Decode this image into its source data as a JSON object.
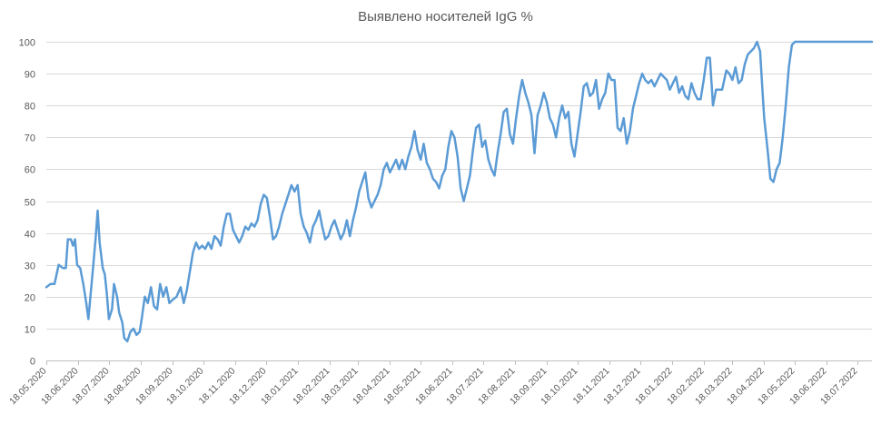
{
  "chart_data": {
    "type": "line",
    "title": "Выявлено носителей IgG %",
    "xlabel": "",
    "ylabel": "",
    "ylim": [
      0,
      100
    ],
    "y_ticks": [
      0,
      10,
      20,
      30,
      40,
      50,
      60,
      70,
      80,
      90,
      100
    ],
    "x_range": [
      "2020-05-18",
      "2022-08-01"
    ],
    "grid": "horizontal",
    "x_tick_labels": [
      "18.05.2020",
      "18.06.2020",
      "18.07.2020",
      "18.08.2020",
      "18.09.2020",
      "18.10.2020",
      "18.11.2020",
      "18.12.2020",
      "18.01.2021",
      "18.02.2021",
      "18.03.2021",
      "18.04.2021",
      "18.05.2021",
      "18.06.2021",
      "18.07.2021",
      "18.08.2021",
      "18.09.2021",
      "18.10.2021",
      "18.11.2021",
      "18.12.2021",
      "18.01.2022",
      "18.02.2022",
      "18.03.2022",
      "18.04.2022",
      "18.05.2022",
      "18.06.2022",
      "18.07.2022"
    ],
    "series_color": "#5B9BD5",
    "series": [
      {
        "values": [
          [
            "2020-05-18",
            23
          ],
          [
            "2020-05-22",
            24
          ],
          [
            "2020-05-26",
            24
          ],
          [
            "2020-05-30",
            30
          ],
          [
            "2020-06-03",
            29
          ],
          [
            "2020-06-06",
            29
          ],
          [
            "2020-06-08",
            38
          ],
          [
            "2020-06-11",
            38
          ],
          [
            "2020-06-13",
            36
          ],
          [
            "2020-06-15",
            38
          ],
          [
            "2020-06-17",
            30
          ],
          [
            "2020-06-20",
            29
          ],
          [
            "2020-06-23",
            24
          ],
          [
            "2020-06-26",
            18
          ],
          [
            "2020-06-28",
            13
          ],
          [
            "2020-07-02",
            27
          ],
          [
            "2020-07-05",
            38
          ],
          [
            "2020-07-07",
            47
          ],
          [
            "2020-07-09",
            37
          ],
          [
            "2020-07-12",
            29
          ],
          [
            "2020-07-14",
            27
          ],
          [
            "2020-07-16",
            21
          ],
          [
            "2020-07-18",
            13
          ],
          [
            "2020-07-21",
            16
          ],
          [
            "2020-07-23",
            24
          ],
          [
            "2020-07-26",
            20
          ],
          [
            "2020-07-28",
            15
          ],
          [
            "2020-07-31",
            12
          ],
          [
            "2020-08-02",
            7
          ],
          [
            "2020-08-05",
            6
          ],
          [
            "2020-08-08",
            9
          ],
          [
            "2020-08-11",
            10
          ],
          [
            "2020-08-14",
            8
          ],
          [
            "2020-08-17",
            9
          ],
          [
            "2020-08-19",
            13
          ],
          [
            "2020-08-22",
            20
          ],
          [
            "2020-08-25",
            18
          ],
          [
            "2020-08-28",
            23
          ],
          [
            "2020-08-31",
            17
          ],
          [
            "2020-09-03",
            16
          ],
          [
            "2020-09-06",
            24
          ],
          [
            "2020-09-09",
            20
          ],
          [
            "2020-09-12",
            23
          ],
          [
            "2020-09-15",
            18
          ],
          [
            "2020-09-18",
            19
          ],
          [
            "2020-09-22",
            20
          ],
          [
            "2020-09-26",
            23
          ],
          [
            "2020-09-29",
            18
          ],
          [
            "2020-10-02",
            22
          ],
          [
            "2020-10-05",
            28
          ],
          [
            "2020-10-08",
            34
          ],
          [
            "2020-10-11",
            37
          ],
          [
            "2020-10-14",
            35
          ],
          [
            "2020-10-17",
            36
          ],
          [
            "2020-10-20",
            35
          ],
          [
            "2020-10-23",
            37
          ],
          [
            "2020-10-26",
            35
          ],
          [
            "2020-10-29",
            39
          ],
          [
            "2020-11-01",
            38
          ],
          [
            "2020-11-04",
            36
          ],
          [
            "2020-11-07",
            42
          ],
          [
            "2020-11-10",
            46
          ],
          [
            "2020-11-13",
            46
          ],
          [
            "2020-11-16",
            41
          ],
          [
            "2020-11-19",
            39
          ],
          [
            "2020-11-22",
            37
          ],
          [
            "2020-11-25",
            39
          ],
          [
            "2020-11-28",
            42
          ],
          [
            "2020-12-01",
            41
          ],
          [
            "2020-12-04",
            43
          ],
          [
            "2020-12-07",
            42
          ],
          [
            "2020-12-10",
            44
          ],
          [
            "2020-12-13",
            49
          ],
          [
            "2020-12-16",
            52
          ],
          [
            "2020-12-19",
            51
          ],
          [
            "2020-12-22",
            45
          ],
          [
            "2020-12-25",
            38
          ],
          [
            "2020-12-28",
            39
          ],
          [
            "2020-12-31",
            42
          ],
          [
            "2021-01-03",
            46
          ],
          [
            "2021-01-06",
            49
          ],
          [
            "2021-01-09",
            52
          ],
          [
            "2021-01-12",
            55
          ],
          [
            "2021-01-15",
            53
          ],
          [
            "2021-01-18",
            55
          ],
          [
            "2021-01-21",
            46
          ],
          [
            "2021-01-24",
            42
          ],
          [
            "2021-01-27",
            40
          ],
          [
            "2021-01-30",
            37
          ],
          [
            "2021-02-02",
            42
          ],
          [
            "2021-02-05",
            44
          ],
          [
            "2021-02-08",
            47
          ],
          [
            "2021-02-11",
            42
          ],
          [
            "2021-02-14",
            38
          ],
          [
            "2021-02-17",
            39
          ],
          [
            "2021-02-20",
            42
          ],
          [
            "2021-02-23",
            44
          ],
          [
            "2021-02-26",
            41
          ],
          [
            "2021-03-01",
            38
          ],
          [
            "2021-03-04",
            40
          ],
          [
            "2021-03-07",
            44
          ],
          [
            "2021-03-10",
            39
          ],
          [
            "2021-03-13",
            44
          ],
          [
            "2021-03-16",
            48
          ],
          [
            "2021-03-19",
            53
          ],
          [
            "2021-03-22",
            56
          ],
          [
            "2021-03-25",
            59
          ],
          [
            "2021-03-28",
            51
          ],
          [
            "2021-03-31",
            48
          ],
          [
            "2021-04-03",
            50
          ],
          [
            "2021-04-06",
            52
          ],
          [
            "2021-04-09",
            55
          ],
          [
            "2021-04-12",
            60
          ],
          [
            "2021-04-15",
            62
          ],
          [
            "2021-04-18",
            59
          ],
          [
            "2021-04-21",
            61
          ],
          [
            "2021-04-24",
            63
          ],
          [
            "2021-04-27",
            60
          ],
          [
            "2021-04-30",
            63
          ],
          [
            "2021-05-03",
            60
          ],
          [
            "2021-05-06",
            64
          ],
          [
            "2021-05-09",
            67
          ],
          [
            "2021-05-12",
            72
          ],
          [
            "2021-05-15",
            66
          ],
          [
            "2021-05-18",
            63
          ],
          [
            "2021-05-21",
            68
          ],
          [
            "2021-05-24",
            62
          ],
          [
            "2021-05-27",
            60
          ],
          [
            "2021-05-30",
            57
          ],
          [
            "2021-06-02",
            56
          ],
          [
            "2021-06-05",
            54
          ],
          [
            "2021-06-08",
            58
          ],
          [
            "2021-06-11",
            60
          ],
          [
            "2021-06-14",
            67
          ],
          [
            "2021-06-17",
            72
          ],
          [
            "2021-06-20",
            70
          ],
          [
            "2021-06-23",
            64
          ],
          [
            "2021-06-26",
            54
          ],
          [
            "2021-06-29",
            50
          ],
          [
            "2021-07-02",
            54
          ],
          [
            "2021-07-05",
            58
          ],
          [
            "2021-07-08",
            66
          ],
          [
            "2021-07-11",
            73
          ],
          [
            "2021-07-14",
            74
          ],
          [
            "2021-07-17",
            67
          ],
          [
            "2021-07-20",
            69
          ],
          [
            "2021-07-23",
            63
          ],
          [
            "2021-07-26",
            60
          ],
          [
            "2021-07-29",
            58
          ],
          [
            "2021-08-01",
            65
          ],
          [
            "2021-08-04",
            71
          ],
          [
            "2021-08-07",
            78
          ],
          [
            "2021-08-10",
            79
          ],
          [
            "2021-08-13",
            71
          ],
          [
            "2021-08-16",
            68
          ],
          [
            "2021-08-19",
            76
          ],
          [
            "2021-08-22",
            83
          ],
          [
            "2021-08-25",
            88
          ],
          [
            "2021-08-28",
            84
          ],
          [
            "2021-08-31",
            81
          ],
          [
            "2021-09-03",
            77
          ],
          [
            "2021-09-06",
            65
          ],
          [
            "2021-09-09",
            77
          ],
          [
            "2021-09-12",
            80
          ],
          [
            "2021-09-15",
            84
          ],
          [
            "2021-09-18",
            81
          ],
          [
            "2021-09-21",
            76
          ],
          [
            "2021-09-24",
            74
          ],
          [
            "2021-09-27",
            70
          ],
          [
            "2021-09-30",
            76
          ],
          [
            "2021-10-03",
            80
          ],
          [
            "2021-10-06",
            76
          ],
          [
            "2021-10-09",
            78
          ],
          [
            "2021-10-12",
            68
          ],
          [
            "2021-10-15",
            64
          ],
          [
            "2021-10-18",
            71
          ],
          [
            "2021-10-21",
            78
          ],
          [
            "2021-10-24",
            86
          ],
          [
            "2021-10-27",
            87
          ],
          [
            "2021-10-30",
            83
          ],
          [
            "2021-11-02",
            84
          ],
          [
            "2021-11-05",
            88
          ],
          [
            "2021-11-08",
            79
          ],
          [
            "2021-11-11",
            82
          ],
          [
            "2021-11-14",
            84
          ],
          [
            "2021-11-17",
            90
          ],
          [
            "2021-11-20",
            88
          ],
          [
            "2021-11-23",
            88
          ],
          [
            "2021-11-26",
            73
          ],
          [
            "2021-11-29",
            72
          ],
          [
            "2021-12-02",
            76
          ],
          [
            "2021-12-05",
            68
          ],
          [
            "2021-12-08",
            72
          ],
          [
            "2021-12-11",
            79
          ],
          [
            "2021-12-14",
            83
          ],
          [
            "2021-12-17",
            87
          ],
          [
            "2021-12-20",
            90
          ],
          [
            "2021-12-23",
            88
          ],
          [
            "2021-12-26",
            87
          ],
          [
            "2021-12-29",
            88
          ],
          [
            "2022-01-01",
            86
          ],
          [
            "2022-01-04",
            88
          ],
          [
            "2022-01-07",
            90
          ],
          [
            "2022-01-10",
            89
          ],
          [
            "2022-01-13",
            88
          ],
          [
            "2022-01-16",
            85
          ],
          [
            "2022-01-19",
            87
          ],
          [
            "2022-01-22",
            89
          ],
          [
            "2022-01-25",
            84
          ],
          [
            "2022-01-28",
            86
          ],
          [
            "2022-01-31",
            83
          ],
          [
            "2022-02-03",
            82
          ],
          [
            "2022-02-06",
            87
          ],
          [
            "2022-02-09",
            84
          ],
          [
            "2022-02-12",
            82
          ],
          [
            "2022-02-15",
            82
          ],
          [
            "2022-02-18",
            88
          ],
          [
            "2022-02-21",
            95
          ],
          [
            "2022-02-24",
            95
          ],
          [
            "2022-02-27",
            80
          ],
          [
            "2022-03-02",
            85
          ],
          [
            "2022-03-08",
            85
          ],
          [
            "2022-03-12",
            91
          ],
          [
            "2022-03-15",
            90
          ],
          [
            "2022-03-18",
            88
          ],
          [
            "2022-03-21",
            92
          ],
          [
            "2022-03-24",
            87
          ],
          [
            "2022-03-27",
            88
          ],
          [
            "2022-03-30",
            93
          ],
          [
            "2022-04-02",
            96
          ],
          [
            "2022-04-05",
            97
          ],
          [
            "2022-04-08",
            98
          ],
          [
            "2022-04-11",
            100
          ],
          [
            "2022-04-14",
            97
          ],
          [
            "2022-04-16",
            86
          ],
          [
            "2022-04-18",
            76
          ],
          [
            "2022-04-21",
            67
          ],
          [
            "2022-04-24",
            57
          ],
          [
            "2022-04-27",
            56
          ],
          [
            "2022-04-30",
            60
          ],
          [
            "2022-05-03",
            62
          ],
          [
            "2022-05-06",
            70
          ],
          [
            "2022-05-09",
            80
          ],
          [
            "2022-05-12",
            92
          ],
          [
            "2022-05-15",
            99
          ],
          [
            "2022-05-18",
            100
          ],
          [
            "2022-08-01",
            100
          ]
        ]
      }
    ]
  }
}
